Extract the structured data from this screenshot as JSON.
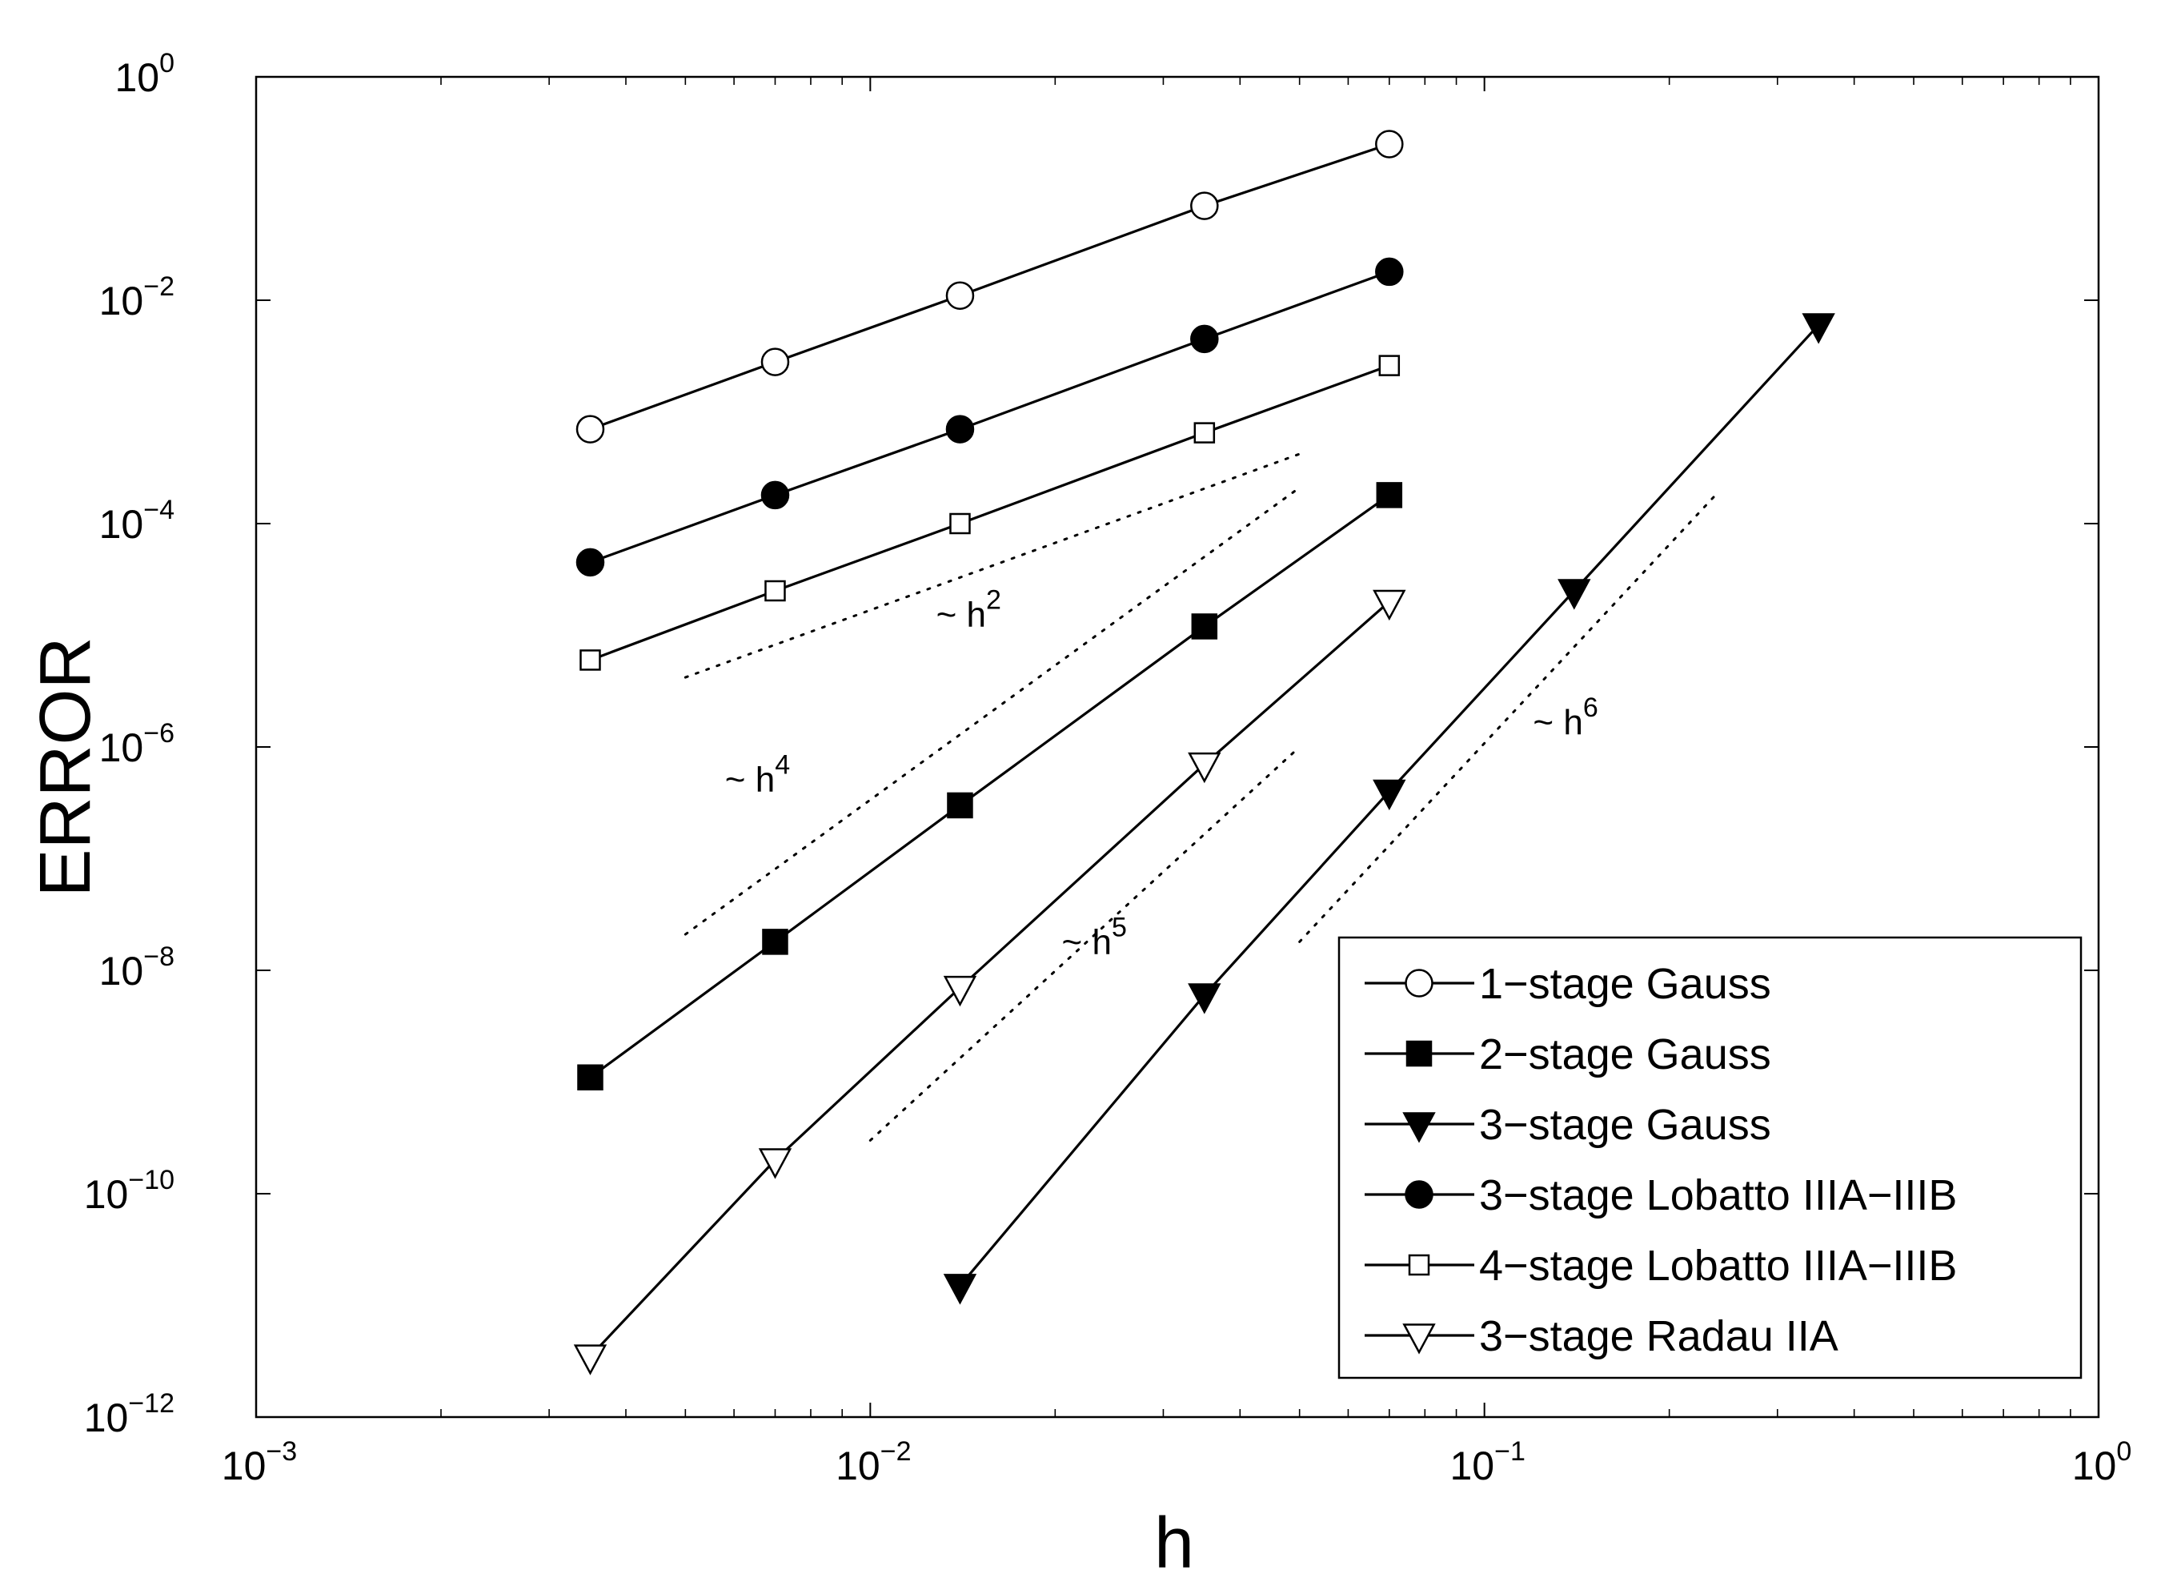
{
  "chart_data": {
    "type": "line",
    "xscale": "log",
    "yscale": "log",
    "xlim": [
      0.001,
      1
    ],
    "ylim": [
      1e-12,
      1
    ],
    "xlabel": "h",
    "ylabel": "ERROR",
    "xticks": [
      {
        "value": 0.001,
        "base": "10",
        "exp": "−3"
      },
      {
        "value": 0.01,
        "base": "10",
        "exp": "−2"
      },
      {
        "value": 0.1,
        "base": "10",
        "exp": "−1"
      },
      {
        "value": 1,
        "base": "10",
        "exp": "0"
      }
    ],
    "yticks": [
      {
        "value": 1,
        "base": "10",
        "exp": "0"
      },
      {
        "value": 0.01,
        "base": "10",
        "exp": "−2"
      },
      {
        "value": 0.0001,
        "base": "10",
        "exp": "−4"
      },
      {
        "value": 1e-06,
        "base": "10",
        "exp": "−6"
      },
      {
        "value": 1e-08,
        "base": "10",
        "exp": "−8"
      },
      {
        "value": 1e-10,
        "base": "10",
        "exp": "−10"
      },
      {
        "value": 1e-12,
        "base": "10",
        "exp": "−12"
      }
    ],
    "grid": false,
    "legend_position": "bottom-right",
    "series": [
      {
        "name": "1−stage Gauss",
        "marker": "circle-open",
        "x": [
          0.0035,
          0.007,
          0.014,
          0.035,
          0.07
        ],
        "y": [
          0.0007,
          0.0028,
          0.011,
          0.07,
          0.25
        ]
      },
      {
        "name": "2−stage Gauss",
        "marker": "square-filled",
        "x": [
          0.0035,
          0.007,
          0.014,
          0.035,
          0.07
        ],
        "y": [
          1.1e-09,
          1.8e-08,
          3e-07,
          1.2e-05,
          0.00018
        ]
      },
      {
        "name": "3−stage Gauss",
        "marker": "triangle-down-filled",
        "x": [
          0.014,
          0.035,
          0.07,
          0.14,
          0.35
        ],
        "y": [
          1.5e-11,
          6e-09,
          4e-07,
          2.5e-05,
          0.006
        ]
      },
      {
        "name": "3−stage Lobatto IIIA−IIIB",
        "marker": "circle-filled",
        "x": [
          0.0035,
          0.007,
          0.014,
          0.035,
          0.07
        ],
        "y": [
          4.5e-05,
          0.00018,
          0.0007,
          0.0045,
          0.018
        ]
      },
      {
        "name": "4−stage Lobatto IIIA−IIIB",
        "marker": "square-open",
        "x": [
          0.0035,
          0.007,
          0.014,
          0.035,
          0.07
        ],
        "y": [
          6e-06,
          2.5e-05,
          0.0001,
          0.00065,
          0.0026
        ]
      },
      {
        "name": "3−stage Radau IIA",
        "marker": "triangle-down-open",
        "x": [
          0.0035,
          0.007,
          0.014,
          0.035,
          0.07
        ],
        "y": [
          3.5e-12,
          2e-10,
          7e-09,
          7e-07,
          2e-05
        ]
      }
    ],
    "reference_lines": [
      {
        "x": [
          0.005,
          0.05
        ],
        "y": [
          4.2e-06,
          0.00042
        ]
      },
      {
        "x": [
          0.005,
          0.05
        ],
        "y": [
          2.1e-08,
          0.00021
        ]
      },
      {
        "x": [
          0.01,
          0.05
        ],
        "y": [
          3e-10,
          1e-06
        ]
      },
      {
        "x": [
          0.05,
          0.24
        ],
        "y": [
          1.8e-08,
          0.00019
        ]
      }
    ],
    "annotations": [
      {
        "text": "~ h",
        "exp": "2",
        "x": 0.0128,
        "y": 1.2e-05
      },
      {
        "text": "~ h",
        "exp": "4",
        "x": 0.0058,
        "y": 4e-07
      },
      {
        "text": "~ h",
        "exp": "5",
        "x": 0.0205,
        "y": 1.4e-08
      },
      {
        "text": "~ h",
        "exp": "6",
        "x": 0.12,
        "y": 1.3e-06
      }
    ]
  }
}
